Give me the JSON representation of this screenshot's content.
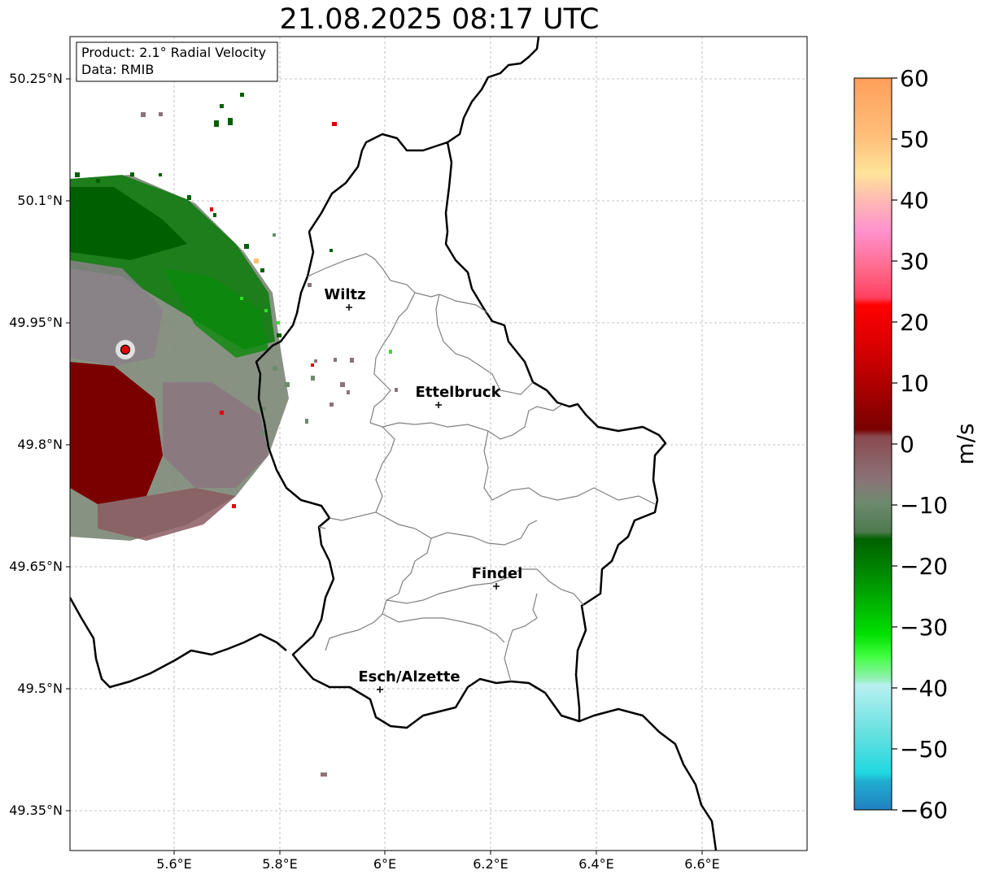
{
  "title": "21.08.2025 08:17 UTC",
  "info": {
    "product": "Product: 2.1° Radial Velocity",
    "data": "Data: RMIB"
  },
  "map": {
    "lon_ticks": [
      "5.6°E",
      "5.8°E",
      "6°E",
      "6.2°E",
      "6.4°E",
      "6.6°E"
    ],
    "lat_ticks": [
      "50.25°N",
      "50.1°N",
      "49.95°N",
      "49.8°N",
      "49.65°N",
      "49.5°N",
      "49.35°N"
    ],
    "cities": [
      {
        "name": "Wiltz"
      },
      {
        "name": "Ettelbruck"
      },
      {
        "name": "Findel"
      },
      {
        "name": "Esch/Alzette"
      }
    ],
    "colors": {
      "border": "#000000",
      "cantons": "#808080",
      "grid": "#b0b0b0",
      "radar_site": "#e00000"
    }
  },
  "colorbar": {
    "label": "m/s",
    "ticks": [
      "60",
      "50",
      "40",
      "30",
      "20",
      "10",
      "0",
      "−10",
      "−20",
      "−30",
      "−40",
      "−50",
      "−60"
    ],
    "range": [
      -60,
      60
    ]
  }
}
